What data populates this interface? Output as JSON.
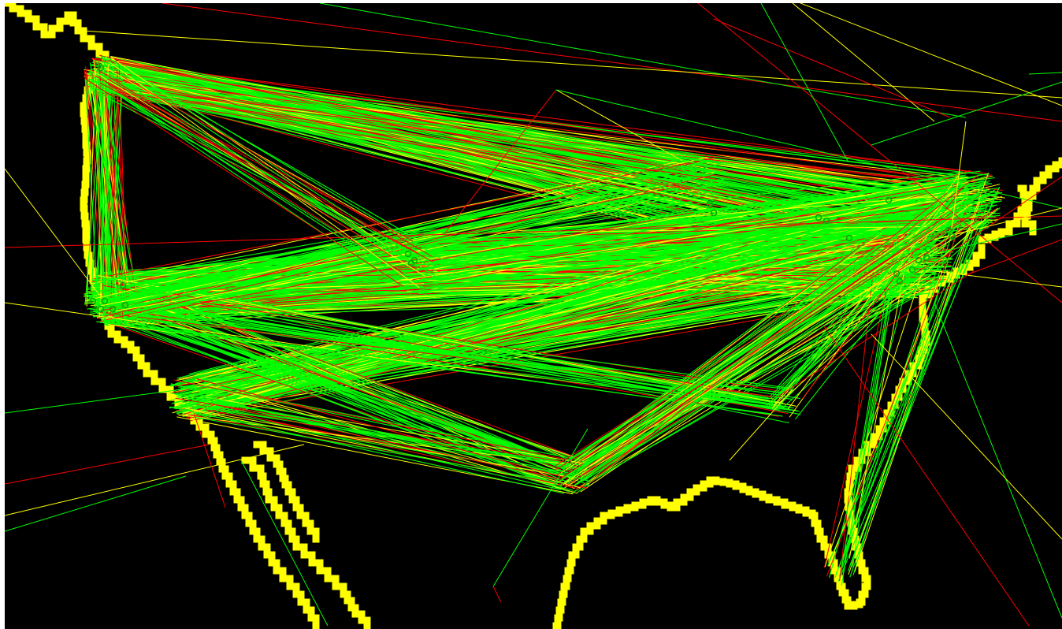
{
  "map": {
    "colors": {
      "background": "#000000",
      "coastline": "#ffff00",
      "route_primary": "#00ff00",
      "route_secondary": "#ffff00",
      "route_tertiary": "#ff0000",
      "airport_marker": "#00aa00"
    },
    "layers": [
      "coastline",
      "flight-routes",
      "airport-markers"
    ]
  }
}
